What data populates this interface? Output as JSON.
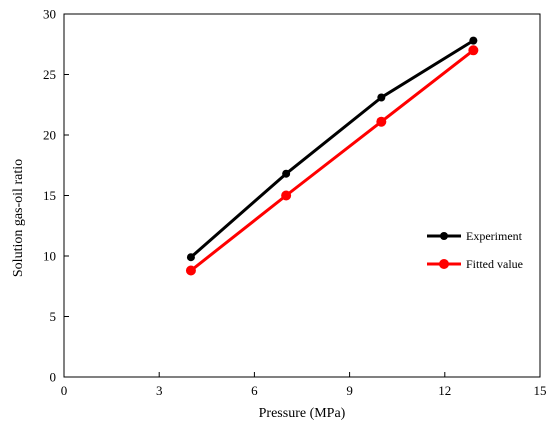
{
  "chart_data": {
    "type": "line",
    "title": "",
    "xlabel": "Pressure (MPa)",
    "ylabel": "Solution gas-oil ratio",
    "xlim": [
      0,
      15
    ],
    "ylim": [
      0,
      30
    ],
    "xticks": [
      0,
      3,
      6,
      9,
      12,
      15
    ],
    "yticks": [
      0,
      5,
      10,
      15,
      20,
      25,
      30
    ],
    "grid": false,
    "legend_position": "right",
    "series": [
      {
        "name": "Experiment",
        "color": "#000000",
        "x": [
          4,
          7,
          10,
          12.9
        ],
        "y": [
          9.9,
          16.8,
          23.1,
          27.8
        ]
      },
      {
        "name": "Fitted value",
        "color": "#ff0000",
        "x": [
          4,
          7,
          10,
          12.9
        ],
        "y": [
          8.8,
          15.0,
          21.1,
          27.0
        ]
      }
    ]
  }
}
